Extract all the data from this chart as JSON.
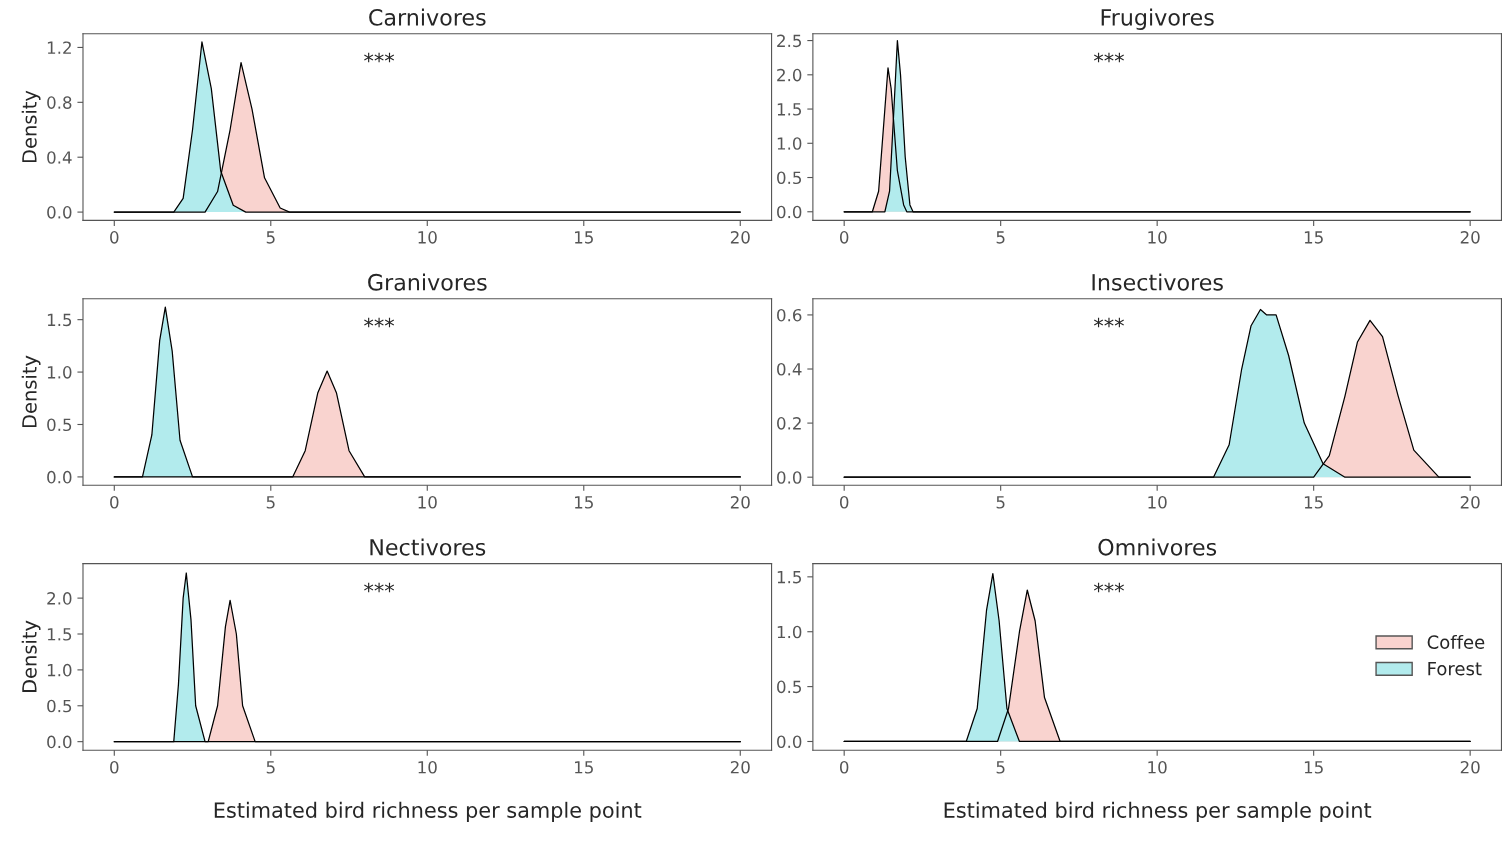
{
  "chart_data": [
    {
      "type": "area",
      "title": "Carnivores",
      "ylabel": "Density",
      "annotations": [
        "***"
      ],
      "xlim": [
        -1,
        21
      ],
      "xticks": [
        0,
        5,
        10,
        15,
        20
      ],
      "ylim": [
        -0.06,
        1.3
      ],
      "yticks": [
        {
          "value": 0,
          "label": "0.0"
        },
        0.4,
        0.8,
        1.2
      ],
      "grid": false,
      "legend": false,
      "series": [
        {
          "color": "#f9d3cf",
          "x": [
            0,
            2.9,
            3.3,
            3.7,
            4.05,
            4.4,
            4.8,
            5.3,
            5.6,
            20
          ],
          "values": [
            0,
            0,
            0.15,
            0.6,
            1.09,
            0.75,
            0.25,
            0.03,
            0,
            0
          ]
        },
        {
          "color": "#b2ebed",
          "x": [
            0,
            1.9,
            2.2,
            2.5,
            2.8,
            3.1,
            3.4,
            3.8,
            4.2,
            20
          ],
          "values": [
            0,
            0,
            0.1,
            0.6,
            1.24,
            0.9,
            0.3,
            0.05,
            0,
            0
          ]
        }
      ]
    },
    {
      "type": "area",
      "title": "Frugivores",
      "annotations": [
        "***"
      ],
      "xlim": [
        -1,
        21
      ],
      "xticks": [
        0,
        5,
        10,
        15,
        20
      ],
      "ylim": [
        -0.125,
        2.6
      ],
      "yticks": [
        {
          "value": 0,
          "label": "0.0"
        },
        0.5,
        {
          "value": 1,
          "label": "1.0"
        },
        1.5,
        {
          "value": 2,
          "label": "2.0"
        },
        2.5
      ],
      "grid": false,
      "legend": false,
      "series": [
        {
          "color": "#f9d3cf",
          "x": [
            0,
            0.9,
            1.1,
            1.3,
            1.4,
            1.5,
            1.7,
            1.9,
            2.0,
            20
          ],
          "values": [
            0,
            0,
            0.3,
            1.5,
            2.1,
            1.8,
            0.6,
            0.1,
            0,
            0
          ]
        },
        {
          "color": "#b2ebed",
          "x": [
            0,
            1.3,
            1.45,
            1.6,
            1.7,
            1.8,
            1.95,
            2.1,
            2.2,
            20
          ],
          "values": [
            0,
            0,
            0.3,
            1.6,
            2.5,
            2.0,
            0.8,
            0.1,
            0,
            0
          ]
        }
      ]
    },
    {
      "type": "area",
      "title": "Granivores",
      "ylabel": "Density",
      "annotations": [
        "***"
      ],
      "xlim": [
        -1,
        21
      ],
      "xticks": [
        0,
        5,
        10,
        15,
        20
      ],
      "ylim": [
        -0.08,
        1.7
      ],
      "yticks": [
        {
          "value": 0,
          "label": "0.0"
        },
        0.5,
        {
          "value": 1,
          "label": "1.0"
        },
        1.5
      ],
      "grid": false,
      "legend": false,
      "series": [
        {
          "color": "#f9d3cf",
          "x": [
            0,
            5.7,
            6.1,
            6.5,
            6.8,
            7.1,
            7.5,
            8.0,
            20
          ],
          "values": [
            0,
            0,
            0.25,
            0.8,
            1.01,
            0.8,
            0.25,
            0,
            0
          ]
        },
        {
          "color": "#b2ebed",
          "x": [
            0,
            0.9,
            1.2,
            1.45,
            1.63,
            1.85,
            2.1,
            2.5,
            20
          ],
          "values": [
            0,
            0,
            0.4,
            1.3,
            1.62,
            1.2,
            0.35,
            0,
            0
          ]
        }
      ]
    },
    {
      "type": "area",
      "title": "Insectivores",
      "annotations": [
        "***"
      ],
      "xlim": [
        -1,
        21
      ],
      "xticks": [
        0,
        5,
        10,
        15,
        20
      ],
      "ylim": [
        -0.03,
        0.66
      ],
      "yticks": [
        {
          "value": 0,
          "label": "0.0"
        },
        0.2,
        0.4,
        0.6
      ],
      "grid": false,
      "legend": false,
      "series": [
        {
          "color": "#f9d3cf",
          "x": [
            0,
            15.0,
            15.5,
            16.0,
            16.4,
            16.8,
            17.2,
            17.7,
            18.2,
            19.0,
            20
          ],
          "values": [
            0,
            0,
            0.08,
            0.3,
            0.5,
            0.58,
            0.52,
            0.3,
            0.1,
            0,
            0
          ]
        },
        {
          "color": "#b2ebed",
          "x": [
            0,
            11.8,
            12.3,
            12.7,
            13.0,
            13.3,
            13.5,
            13.8,
            14.2,
            14.7,
            15.3,
            16.0,
            20
          ],
          "values": [
            0,
            0,
            0.12,
            0.4,
            0.56,
            0.62,
            0.6,
            0.6,
            0.45,
            0.2,
            0.05,
            0,
            0
          ]
        }
      ]
    },
    {
      "type": "area",
      "title": "Nectivores",
      "ylabel": "Density",
      "xlabel": "Estimated bird richness per sample point",
      "annotations": [
        "***"
      ],
      "xlim": [
        -1,
        21
      ],
      "xticks": [
        0,
        5,
        10,
        15,
        20
      ],
      "ylim": [
        -0.12,
        2.48
      ],
      "yticks": [
        {
          "value": 0,
          "label": "0.0"
        },
        0.5,
        {
          "value": 1,
          "label": "1.0"
        },
        1.5,
        {
          "value": 2,
          "label": "2.0"
        }
      ],
      "grid": false,
      "legend": false,
      "series": [
        {
          "color": "#f9d3cf",
          "x": [
            0,
            3.0,
            3.3,
            3.55,
            3.7,
            3.9,
            4.1,
            4.5,
            20
          ],
          "values": [
            0,
            0,
            0.5,
            1.6,
            1.97,
            1.5,
            0.5,
            0,
            0
          ]
        },
        {
          "color": "#b2ebed",
          "x": [
            0,
            1.9,
            2.05,
            2.2,
            2.3,
            2.45,
            2.6,
            2.9,
            20
          ],
          "values": [
            0,
            0,
            0.8,
            2.0,
            2.35,
            1.7,
            0.5,
            0,
            0
          ]
        }
      ]
    },
    {
      "type": "area",
      "title": "Omnivores",
      "xlabel": "Estimated bird richness per sample point",
      "annotations": [
        "***"
      ],
      "xlim": [
        -1,
        21
      ],
      "xticks": [
        0,
        5,
        10,
        15,
        20
      ],
      "ylim": [
        -0.08,
        1.62
      ],
      "yticks": [
        {
          "value": 0,
          "label": "0.0"
        },
        0.5,
        {
          "value": 1,
          "label": "1.0"
        },
        1.5
      ],
      "grid": false,
      "legend": "right",
      "series": [
        {
          "name": "Coffee",
          "color": "#f9d3cf",
          "x": [
            0,
            4.9,
            5.25,
            5.6,
            5.85,
            6.1,
            6.4,
            6.9,
            20
          ],
          "values": [
            0,
            0,
            0.3,
            1.0,
            1.38,
            1.1,
            0.4,
            0,
            0
          ]
        },
        {
          "name": "Forest",
          "color": "#b2ebed",
          "x": [
            0,
            3.9,
            4.25,
            4.55,
            4.75,
            4.95,
            5.2,
            5.6,
            20
          ],
          "values": [
            0,
            0,
            0.3,
            1.2,
            1.53,
            1.1,
            0.3,
            0,
            0
          ]
        }
      ]
    }
  ]
}
